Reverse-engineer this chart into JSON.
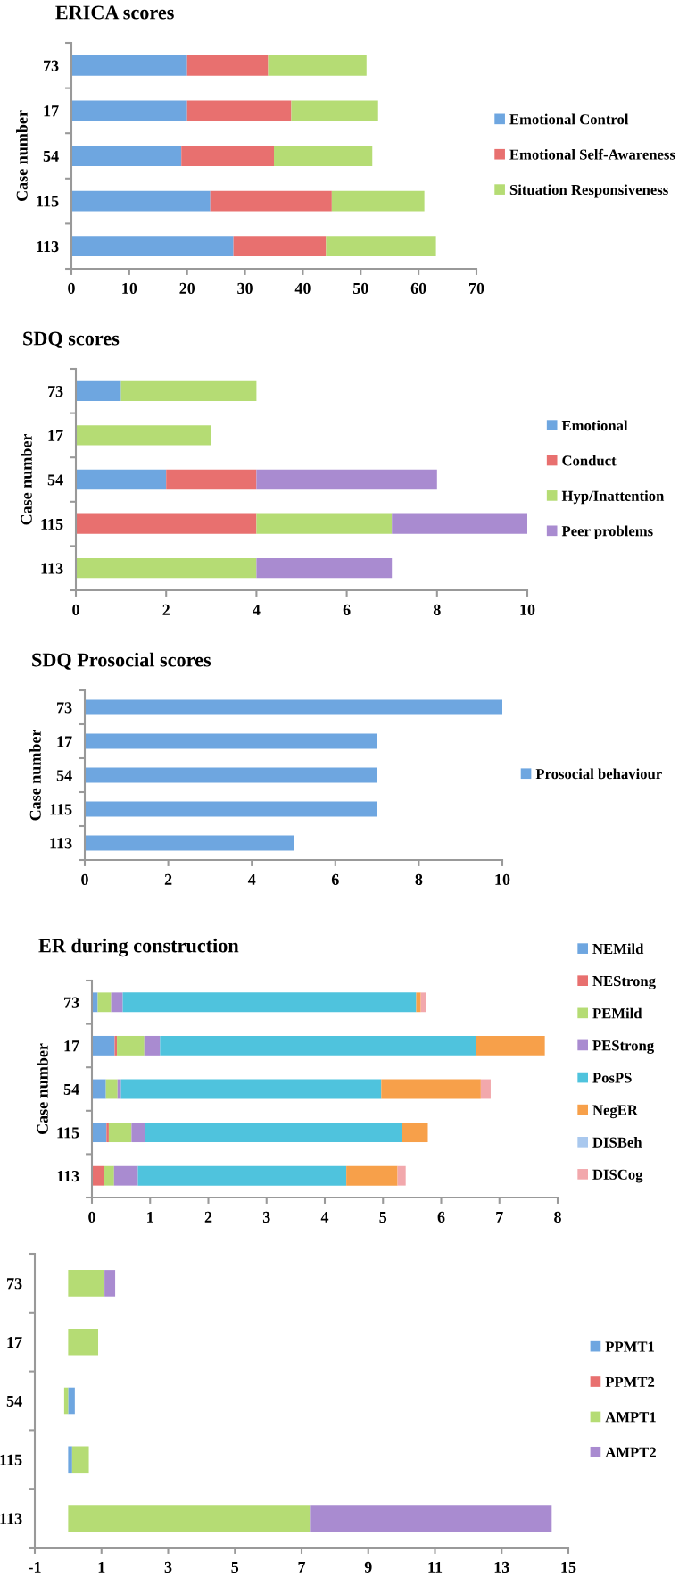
{
  "chart_data": [
    {
      "type": "bar",
      "orientation": "horizontal",
      "stacked": true,
      "title": "ERICA scores",
      "ylabel": "Case number",
      "categories": [
        "73",
        "17",
        "54",
        "115",
        "113"
      ],
      "xlim": [
        0,
        70
      ],
      "xticks": [
        0,
        10,
        20,
        30,
        40,
        50,
        60,
        70
      ],
      "legend": "right",
      "series": [
        {
          "name": "Emotional Control",
          "color": "#6ea6e0",
          "values": [
            20,
            20,
            19,
            24,
            28
          ]
        },
        {
          "name": "Emotional Self-Awareness",
          "color": "#e8706f",
          "values": [
            14,
            18,
            16,
            21,
            16
          ]
        },
        {
          "name": "Situation Responsiveness",
          "color": "#b5dc74",
          "values": [
            17,
            15,
            17,
            16,
            19
          ]
        }
      ]
    },
    {
      "type": "bar",
      "orientation": "horizontal",
      "stacked": true,
      "title": "SDQ scores",
      "ylabel": "Case number",
      "categories": [
        "73",
        "17",
        "54",
        "115",
        "113"
      ],
      "xlim": [
        0,
        10
      ],
      "xticks": [
        0,
        2,
        4,
        6,
        8,
        10
      ],
      "legend": "right",
      "series": [
        {
          "name": "Emotional",
          "color": "#6ea6e0",
          "values": [
            1,
            0,
            2,
            0,
            0
          ]
        },
        {
          "name": "Conduct",
          "color": "#e8706f",
          "values": [
            0,
            0,
            2,
            4,
            0
          ]
        },
        {
          "name": "Hyp/Inattention",
          "color": "#b5dc74",
          "values": [
            3,
            3,
            0,
            3,
            4
          ]
        },
        {
          "name": "Peer problems",
          "color": "#a98bd0",
          "values": [
            0,
            0,
            4,
            3,
            3
          ]
        }
      ]
    },
    {
      "type": "bar",
      "orientation": "horizontal",
      "stacked": true,
      "title": "SDQ Prosocial scores",
      "ylabel": "Case number",
      "categories": [
        "73",
        "17",
        "54",
        "115",
        "113"
      ],
      "xlim": [
        0,
        10
      ],
      "xticks": [
        0,
        2,
        4,
        6,
        8,
        10
      ],
      "legend": "right",
      "series": [
        {
          "name": "Prosocial behaviour",
          "color": "#6ea6e0",
          "values": [
            10,
            7,
            7,
            7,
            5
          ]
        }
      ]
    },
    {
      "type": "bar",
      "orientation": "horizontal",
      "stacked": true,
      "title": "ER during construction",
      "ylabel": "Case number",
      "categories": [
        "73",
        "17",
        "54",
        "115",
        "113"
      ],
      "xlim": [
        0,
        8
      ],
      "xticks": [
        0,
        1,
        2,
        3,
        4,
        5,
        6,
        7,
        8
      ],
      "legend": "right",
      "series": [
        {
          "name": "NEMild",
          "color": "#6ea6e0",
          "values": [
            0.1,
            0.39,
            0.24,
            0.25,
            0
          ]
        },
        {
          "name": "NEStrong",
          "color": "#e8706f",
          "values": [
            0,
            0.04,
            0,
            0.04,
            0.21
          ]
        },
        {
          "name": "PEMild",
          "color": "#b5dc74",
          "values": [
            0.23,
            0.47,
            0.2,
            0.39,
            0.17
          ]
        },
        {
          "name": "PEStrong",
          "color": "#a98bd0",
          "values": [
            0.2,
            0.27,
            0.06,
            0.23,
            0.41
          ]
        },
        {
          "name": "PosPS",
          "color": "#4fc3dd",
          "values": [
            5.04,
            5.42,
            4.47,
            4.42,
            3.58
          ]
        },
        {
          "name": "NegER",
          "color": "#f7a04a",
          "values": [
            0.08,
            1.19,
            1.71,
            0.44,
            0.88
          ]
        },
        {
          "name": "DISBeh",
          "color": "#a9c8ee",
          "values": [
            0,
            null,
            0,
            null,
            0
          ]
        },
        {
          "name": "DISCog",
          "color": "#f2a8ac",
          "values": [
            0.09,
            0,
            0.17,
            0,
            0.14
          ]
        }
      ]
    },
    {
      "type": "bar",
      "orientation": "horizontal",
      "stacked": true,
      "categories": [
        "73",
        "17",
        "54",
        "115",
        "113"
      ],
      "xlim": [
        -1,
        15
      ],
      "xticks": [
        -1,
        1,
        3,
        5,
        7,
        9,
        11,
        13,
        15
      ],
      "legend": "right",
      "series": [
        {
          "name": "PPMT1",
          "color": "#6ea6e0",
          "values": [
            0,
            0,
            0.2,
            0.12,
            0
          ]
        },
        {
          "name": "PPMT2",
          "color": "#e8706f",
          "values": [
            0,
            0,
            0,
            0,
            0
          ]
        },
        {
          "name": "AMPT1",
          "color": "#b5dc74",
          "values": [
            1.09,
            0.9,
            -0.12,
            0.5,
            7.25
          ]
        },
        {
          "name": "AMPT2",
          "color": "#a98bd0",
          "values": [
            0.32,
            0,
            0,
            0,
            7.25
          ]
        }
      ]
    }
  ]
}
